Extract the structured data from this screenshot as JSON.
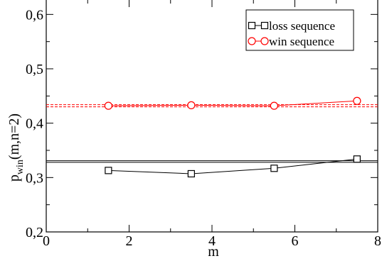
{
  "chart_data": {
    "type": "line",
    "xlabel": "m",
    "ylabel_base": "p",
    "ylabel_sub": "win",
    "ylabel_rest": "(m,n=2)",
    "xlim": [
      0,
      8
    ],
    "ylim": [
      0.2,
      0.65
    ],
    "x_ticks": [
      0,
      2,
      4,
      6,
      8
    ],
    "x_tick_labels": [
      "0",
      "2",
      "4",
      "6",
      "8"
    ],
    "y_ticks": [
      0.2,
      0.3,
      0.4,
      0.5,
      0.6
    ],
    "y_tick_labels": [
      "0,2",
      "0,3",
      "0,4",
      "0,5",
      "0,6"
    ],
    "grid": false,
    "legend_position": "top-right",
    "series": [
      {
        "name": "loss sequence",
        "color": "#000000",
        "marker": "square",
        "x": [
          1.5,
          3.5,
          5.5,
          7.5
        ],
        "y": [
          0.313,
          0.307,
          0.317,
          0.334
        ],
        "yerr": [
          0.003,
          0.003,
          0.003,
          0.004
        ]
      },
      {
        "name": "win sequence",
        "color": "#ff0000",
        "marker": "circle",
        "x": [
          1.5,
          3.5,
          5.5,
          7.5
        ],
        "y": [
          0.432,
          0.433,
          0.432,
          0.441
        ],
        "yerr": [
          0.004,
          0.004,
          0.004,
          0.005
        ]
      }
    ],
    "reference_lines": [
      {
        "y": 0.328,
        "color": "#000000",
        "style": "solid"
      },
      {
        "y": 0.331,
        "color": "#000000",
        "style": "solid"
      },
      {
        "y": 0.43,
        "color": "#ff0000",
        "style": "dashed"
      },
      {
        "y": 0.434,
        "color": "#ff0000",
        "style": "dashed"
      }
    ]
  }
}
